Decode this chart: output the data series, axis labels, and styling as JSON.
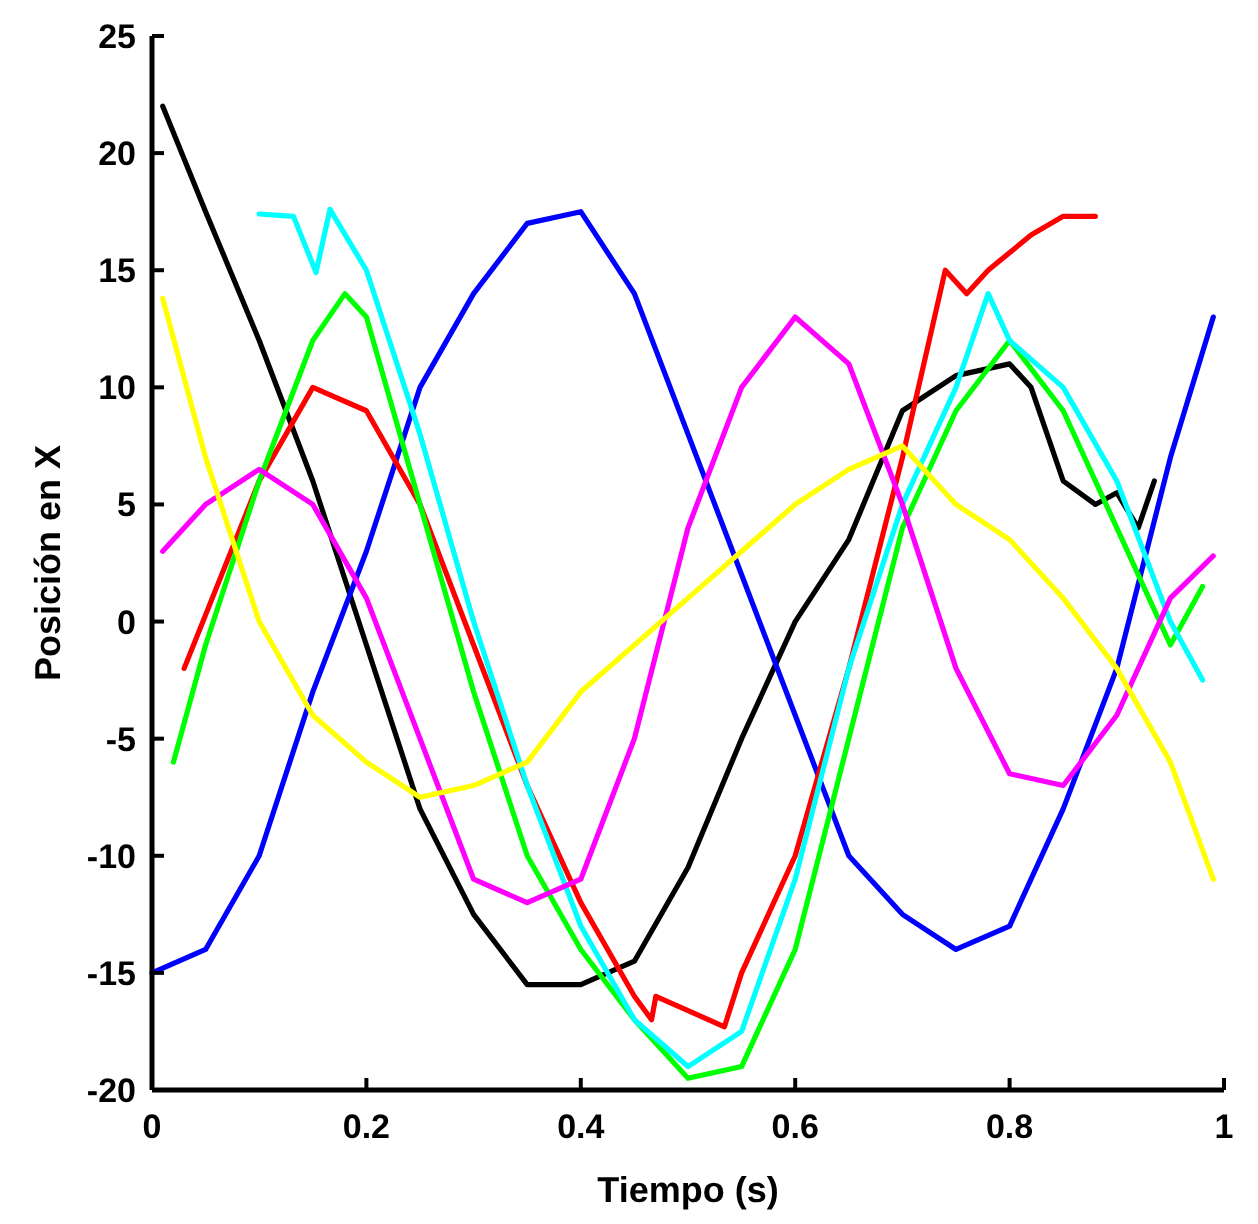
{
  "chart_data": {
    "type": "line",
    "xlabel": "Tiempo (s)",
    "ylabel": "Posición en X",
    "xlim": [
      0,
      1
    ],
    "xticks": [
      0,
      0.2,
      0.4,
      0.6,
      0.8,
      1
    ],
    "ylim": [
      -20,
      25
    ],
    "yticks": [
      -20,
      -15,
      -10,
      -5,
      0,
      5,
      10,
      15,
      20,
      25
    ],
    "grid": false,
    "series": [
      {
        "color": "#000000",
        "x": [
          0.01,
          0.05,
          0.1,
          0.15,
          0.2,
          0.25,
          0.3,
          0.35,
          0.4,
          0.45,
          0.5,
          0.55,
          0.6,
          0.65,
          0.7,
          0.75,
          0.8,
          0.82,
          0.85,
          0.88,
          0.9,
          0.92,
          0.935
        ],
        "values": [
          22,
          17.5,
          12,
          6,
          -1,
          -8,
          -12.5,
          -15.5,
          -15.5,
          -14.5,
          -10.5,
          -5,
          0,
          3.5,
          9,
          10.5,
          11,
          10,
          6,
          5,
          5.5,
          4,
          6
        ]
      },
      {
        "color": "#0000ff",
        "x": [
          0,
          0.05,
          0.1,
          0.15,
          0.2,
          0.25,
          0.3,
          0.35,
          0.4,
          0.45,
          0.5,
          0.55,
          0.6,
          0.65,
          0.7,
          0.75,
          0.8,
          0.85,
          0.9,
          0.95,
          0.99
        ],
        "values": [
          -15,
          -14,
          -10,
          -3,
          3,
          10,
          14,
          17,
          17.5,
          14,
          8,
          2,
          -4,
          -10,
          -12.5,
          -14,
          -13,
          -8,
          -2,
          7,
          13
        ]
      },
      {
        "color": "#ff0000",
        "x": [
          0.03,
          0.1,
          0.15,
          0.2,
          0.25,
          0.3,
          0.35,
          0.4,
          0.45,
          0.466,
          0.47,
          0.534,
          0.55,
          0.6,
          0.65,
          0.7,
          0.74,
          0.76,
          0.78,
          0.82,
          0.85,
          0.88
        ],
        "values": [
          -2,
          6,
          10,
          9,
          5,
          -1,
          -7,
          -12,
          -16,
          -17,
          -16,
          -17.3,
          -15,
          -10,
          -2,
          7,
          15,
          14,
          15,
          16.5,
          17.3,
          17.3
        ]
      },
      {
        "color": "#00ff00",
        "x": [
          0.02,
          0.05,
          0.1,
          0.15,
          0.18,
          0.2,
          0.25,
          0.3,
          0.35,
          0.4,
          0.45,
          0.5,
          0.55,
          0.6,
          0.65,
          0.7,
          0.75,
          0.8,
          0.85,
          0.9,
          0.95,
          0.98
        ],
        "values": [
          -6,
          -1,
          6,
          12,
          14,
          13,
          5,
          -3,
          -10,
          -14,
          -17,
          -19.5,
          -19,
          -14,
          -5,
          4,
          9,
          12,
          9,
          4,
          -1,
          1.5
        ]
      },
      {
        "color": "#00ffff",
        "x": [
          0.1,
          0.132,
          0.153,
          0.166,
          0.2,
          0.25,
          0.3,
          0.35,
          0.4,
          0.45,
          0.5,
          0.55,
          0.6,
          0.65,
          0.7,
          0.75,
          0.78,
          0.8,
          0.85,
          0.9,
          0.95,
          0.98
        ],
        "values": [
          17.4,
          17.3,
          14.9,
          17.6,
          15,
          8,
          0,
          -7,
          -13,
          -17,
          -19,
          -17.5,
          -11,
          -2,
          5,
          10,
          14,
          12,
          10,
          6,
          0,
          -2.5
        ]
      },
      {
        "color": "#ff00ff",
        "x": [
          0.01,
          0.05,
          0.1,
          0.15,
          0.2,
          0.25,
          0.3,
          0.35,
          0.4,
          0.45,
          0.5,
          0.55,
          0.6,
          0.65,
          0.7,
          0.75,
          0.8,
          0.85,
          0.9,
          0.95,
          0.99
        ],
        "values": [
          3,
          5,
          6.5,
          5,
          1,
          -5,
          -11,
          -12,
          -11,
          -5,
          4,
          10,
          13,
          11,
          5,
          -2,
          -6.5,
          -7,
          -4,
          1,
          2.8
        ]
      },
      {
        "color": "#ffff00",
        "x": [
          0.01,
          0.05,
          0.1,
          0.15,
          0.2,
          0.25,
          0.3,
          0.35,
          0.4,
          0.45,
          0.5,
          0.55,
          0.6,
          0.65,
          0.7,
          0.75,
          0.8,
          0.85,
          0.9,
          0.95,
          0.99
        ],
        "values": [
          13.8,
          7,
          0,
          -4,
          -6,
          -7.5,
          -7,
          -6,
          -3,
          -1,
          1,
          3,
          5,
          6.5,
          7.5,
          5,
          3.5,
          1,
          -2,
          -6,
          -11
        ]
      }
    ]
  }
}
